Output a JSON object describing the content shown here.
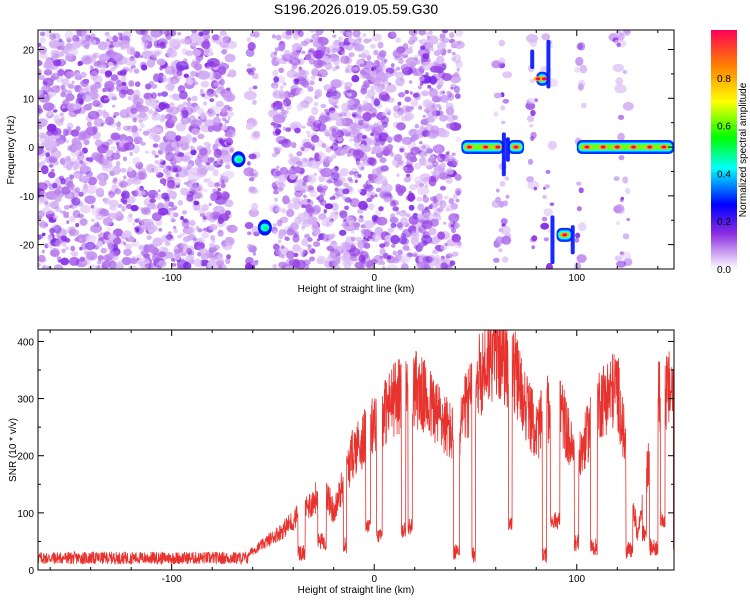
{
  "figure": {
    "title": "S196.2026.019.05.59.G30",
    "accent_colors": {
      "signal": "#e8322e",
      "scatter": "#8a2be2",
      "axis": "#000000"
    }
  },
  "chart_data": [
    {
      "type": "heatmap",
      "xlabel": "Height of straight line (km)",
      "ylabel": "Frequency (Hz)",
      "xlim": [
        -166,
        148
      ],
      "ylim": [
        -25,
        24
      ],
      "xticks": [
        -100,
        0,
        100
      ],
      "yticks": [
        -20,
        -10,
        0,
        10,
        20
      ],
      "grid": false,
      "colorbar": {
        "label": "Normalized spectral amplitude",
        "range": [
          0.0,
          1.0
        ],
        "ticks": [
          0.0,
          0.2,
          0.4,
          0.6,
          0.8
        ]
      },
      "features": [
        {
          "x": -67,
          "y": -2.5,
          "amplitude": 0.45
        },
        {
          "x": -54,
          "y": -16.5,
          "amplitude": 0.5
        },
        {
          "x": 54,
          "y": 0,
          "amplitude": 0.95
        },
        {
          "x": 70,
          "y": 0,
          "amplitude": 0.95
        },
        {
          "x": 82,
          "y": 14,
          "amplitude": 0.9
        },
        {
          "x": 94,
          "y": -18,
          "amplitude": 0.95
        },
        {
          "x": 110,
          "y": 0,
          "amplitude": 0.95
        },
        {
          "x": 142,
          "y": 0,
          "amplitude": 0.95
        }
      ]
    },
    {
      "type": "line",
      "xlabel": "Height of straight line (km)",
      "ylabel": "SNR (10 * v/v)",
      "xlim": [
        -166,
        148
      ],
      "ylim": [
        0,
        420
      ],
      "xticks": [
        -100,
        0,
        100
      ],
      "yticks": [
        0,
        100,
        200,
        300,
        400
      ],
      "grid": false,
      "series": [
        {
          "name": "SNR",
          "x": [
            -166,
            -120,
            -80,
            -65,
            -55,
            -45,
            -38,
            -30,
            -25,
            -20,
            -10,
            0,
            10,
            20,
            30,
            40,
            50,
            60,
            70,
            80,
            90,
            100,
            110,
            120,
            130,
            140,
            148
          ],
          "values": [
            20,
            20,
            20,
            22,
            45,
            70,
            95,
            120,
            150,
            100,
            210,
            250,
            300,
            320,
            280,
            230,
            330,
            390,
            340,
            240,
            310,
            180,
            290,
            320,
            60,
            300,
            320
          ]
        }
      ]
    }
  ]
}
